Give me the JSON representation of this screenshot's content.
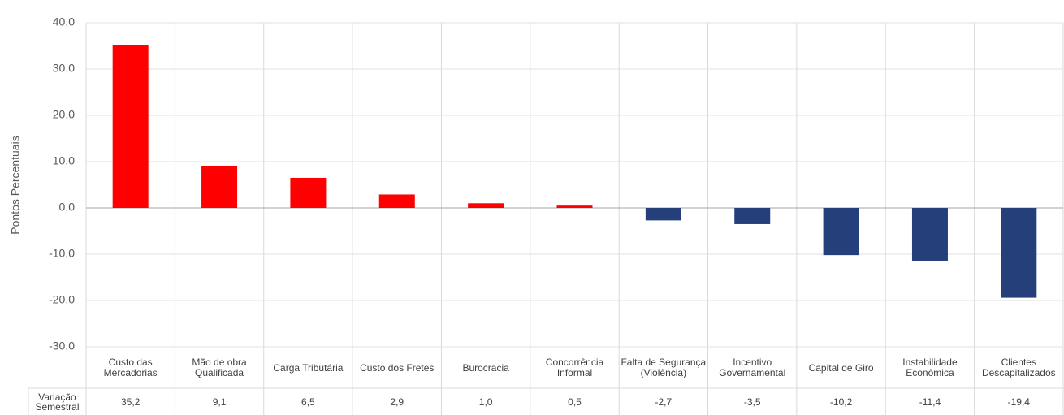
{
  "chart_data": {
    "type": "bar",
    "y_label": "Pontos Percentuais",
    "categories": [
      "Custo das Mercadorias",
      "Mão de obra Qualificada",
      "Carga Tributária",
      "Custo dos Fretes",
      "Burocracia",
      "Concorrência Informal",
      "Falta de Segurança (Violência)",
      "Incentivo Governamental",
      "Capital de Giro",
      "Instabilidade Econômica",
      "Clientes Descapitalizados"
    ],
    "series": [
      {
        "name": "Variação Semestral",
        "values": [
          35.2,
          9.1,
          6.5,
          2.9,
          1.0,
          0.5,
          -2.7,
          -3.5,
          -10.2,
          -11.4,
          -19.4
        ],
        "value_labels": [
          "35,2",
          "9,1",
          "6,5",
          "2,9",
          "1,0",
          "0,5",
          "-2,7",
          "-3,5",
          "-10,2",
          "-11,4",
          "-19,4"
        ],
        "colors": [
          "#ff0000",
          "#ff0000",
          "#ff0000",
          "#ff0000",
          "#ff0000",
          "#ff0000",
          "#243f7a",
          "#243f7a",
          "#243f7a",
          "#243f7a",
          "#243f7a"
        ]
      }
    ],
    "ylim": [
      -30,
      40
    ],
    "yticks": [
      {
        "value": -30,
        "label": "-30,0"
      },
      {
        "value": -20,
        "label": "-20,0"
      },
      {
        "value": -10,
        "label": "-10,0"
      },
      {
        "value": 0,
        "label": "0,0"
      },
      {
        "value": 10,
        "label": "10,0"
      },
      {
        "value": 20,
        "label": "20,0"
      },
      {
        "value": 30,
        "label": "30,0"
      },
      {
        "value": 40,
        "label": "40,0"
      }
    ],
    "grid": true
  }
}
